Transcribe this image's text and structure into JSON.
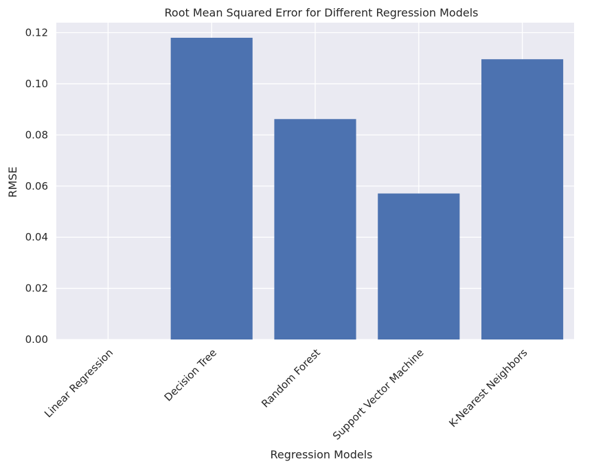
{
  "chart_data": {
    "type": "bar",
    "title": "Root Mean Squared Error for Different Regression Models",
    "xlabel": "Regression Models",
    "ylabel": "RMSE",
    "categories": [
      "Linear Regression",
      "Decision Tree",
      "Random Forest",
      "Support Vector Machine",
      "K-Nearest Neighbors"
    ],
    "values": [
      0.0,
      0.118,
      0.0862,
      0.0571,
      0.1096
    ],
    "ylim": [
      0,
      0.1239
    ],
    "yticks": [
      0.0,
      0.02,
      0.04,
      0.06,
      0.08,
      0.1,
      0.12
    ],
    "ytick_labels": [
      "0.00",
      "0.02",
      "0.04",
      "0.06",
      "0.08",
      "0.10",
      "0.12"
    ],
    "grid": true,
    "colors": {
      "bar": "#4c72b0",
      "plot_background": "#eaeaf2",
      "grid": "#ffffff",
      "text": "#262626"
    }
  }
}
